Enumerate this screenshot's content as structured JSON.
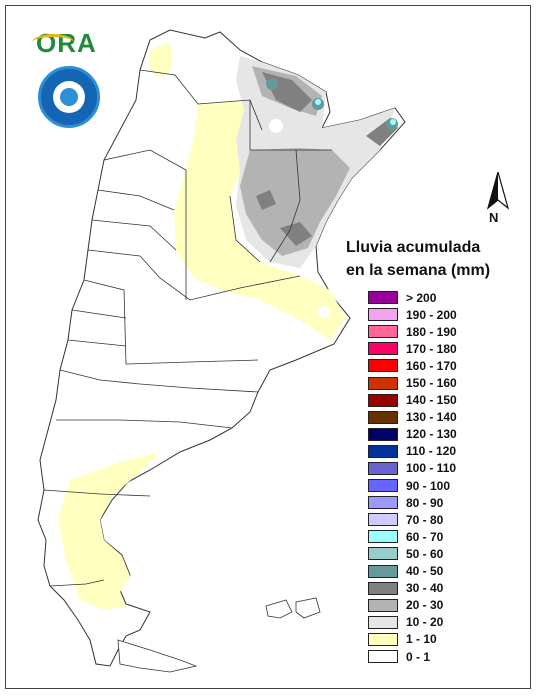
{
  "map": {
    "title_line1": "Lluvia acumulada",
    "title_line2": "en la semana (mm)",
    "north_label": "N",
    "logo_text": "ORA",
    "legend": [
      {
        "label": "> 200",
        "color": "#990099"
      },
      {
        "label": "190 - 200",
        "color": "#f5a3f0"
      },
      {
        "label": "180 - 190",
        "color": "#ff6699"
      },
      {
        "label": "170 - 180",
        "color": "#ff0066"
      },
      {
        "label": "160 - 170",
        "color": "#ff0000"
      },
      {
        "label": "150 - 160",
        "color": "#cc3300"
      },
      {
        "label": "140 - 150",
        "color": "#990000"
      },
      {
        "label": "130 - 140",
        "color": "#663300"
      },
      {
        "label": "120 - 130",
        "color": "#000066"
      },
      {
        "label": "110 - 120",
        "color": "#003399"
      },
      {
        "label": "100 - 110",
        "color": "#6666cc"
      },
      {
        "label": "90 - 100",
        "color": "#6666ff"
      },
      {
        "label": "80 - 90",
        "color": "#9999ff"
      },
      {
        "label": "70 - 80",
        "color": "#ccccff"
      },
      {
        "label": "60 - 70",
        "color": "#99ffff"
      },
      {
        "label": "50 - 60",
        "color": "#99cccc"
      },
      {
        "label": "40 - 50",
        "color": "#669999"
      },
      {
        "label": "30 - 40",
        "color": "#808080"
      },
      {
        "label": "20 - 30",
        "color": "#b3b3b3"
      },
      {
        "label": "10 - 20",
        "color": "#e6e6e6"
      },
      {
        "label": "1 - 10",
        "color": "#ffffc0"
      },
      {
        "label": "0 - 1",
        "color": "#ffffff"
      }
    ]
  }
}
